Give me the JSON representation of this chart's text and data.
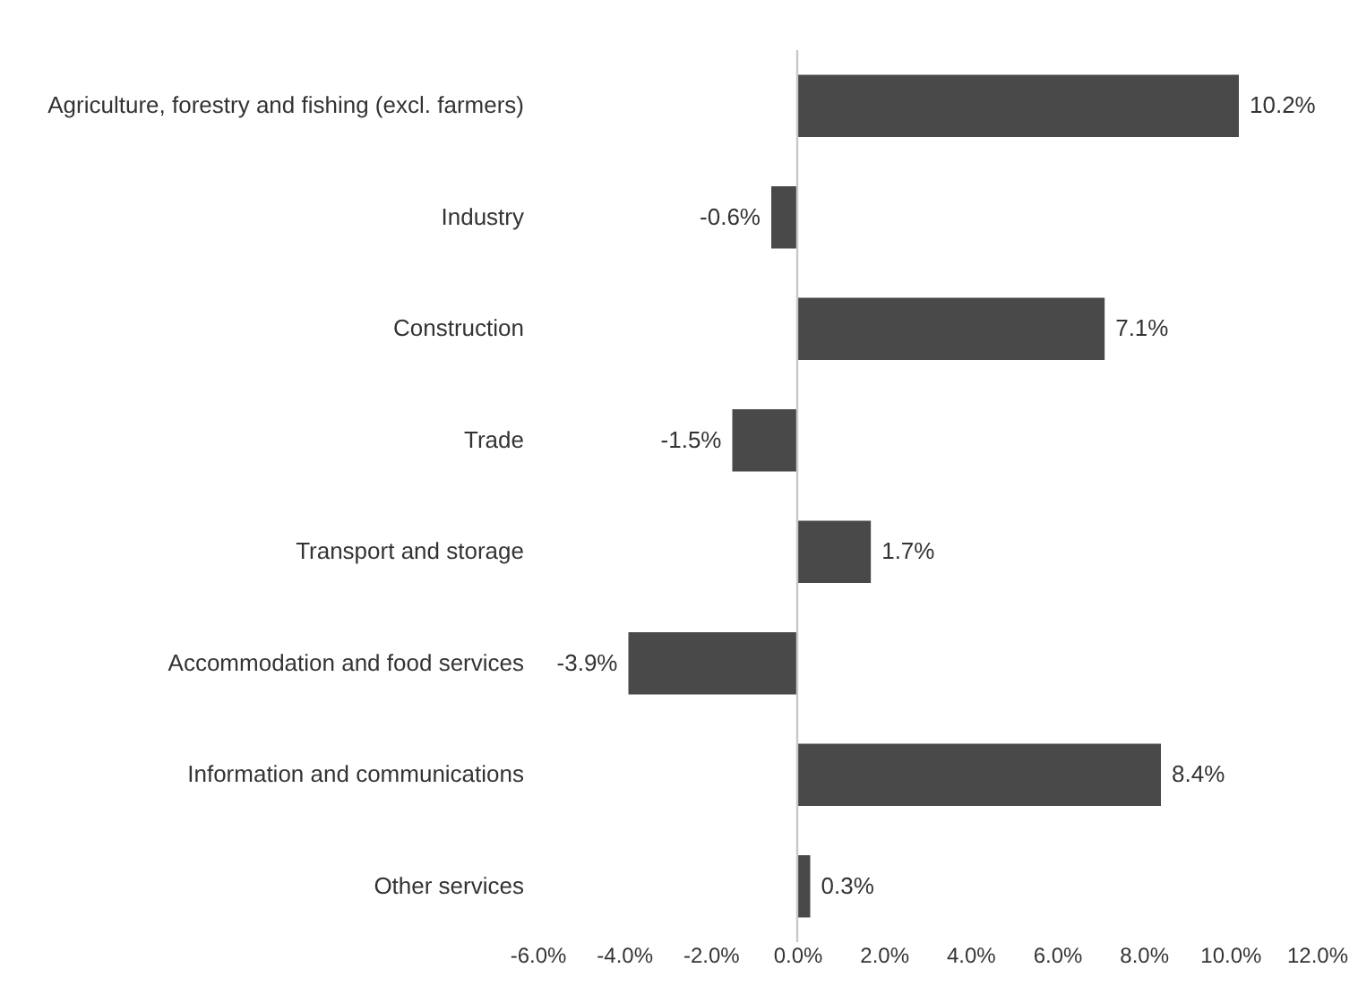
{
  "chart_data": {
    "type": "bar",
    "orientation": "horizontal",
    "categories": [
      "Agriculture, forestry and fishing (excl. farmers)",
      "Industry",
      "Construction",
      "Trade",
      "Transport and storage",
      "Accommodation and food services",
      "Information and communications",
      "Other services"
    ],
    "values": [
      10.2,
      -0.6,
      7.1,
      -1.5,
      1.7,
      -3.9,
      8.4,
      0.3
    ],
    "value_labels": [
      "10.2%",
      "-0.6%",
      "7.1%",
      "-1.5%",
      "1.7%",
      "-3.9%",
      "8.4%",
      "0.3%"
    ],
    "color": "#494949",
    "xlim": [
      -6,
      12
    ],
    "xticks": [
      {
        "value": -6,
        "label": "-6.0%"
      },
      {
        "value": -4,
        "label": "-4.0%"
      },
      {
        "value": -2,
        "label": "-2.0%"
      },
      {
        "value": 0,
        "label": "0.0%"
      },
      {
        "value": 2,
        "label": "2.0%"
      },
      {
        "value": 4,
        "label": "4.0%"
      },
      {
        "value": 6,
        "label": "6.0%"
      },
      {
        "value": 8,
        "label": "8.0%"
      },
      {
        "value": 10,
        "label": "10.0%"
      },
      {
        "value": 12,
        "label": "12.0%"
      }
    ],
    "ref_lines": [
      {
        "axis": "x",
        "value": 0,
        "color": "#c8c8c8"
      }
    ],
    "grid": false
  }
}
